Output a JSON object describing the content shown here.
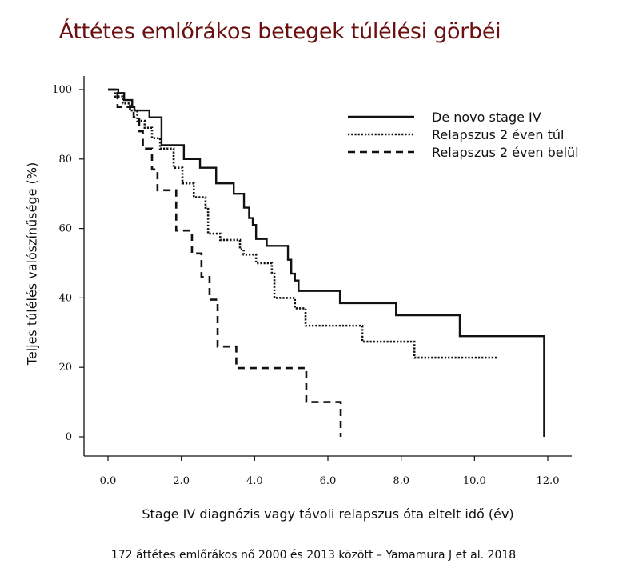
{
  "chart_data": {
    "type": "line",
    "title": "Áttétes emlőrákos betegek túlélési görbéi",
    "xlabel": "Stage IV diagnózis vagy távoli relapszus óta eltelt idő (év)",
    "ylabel": "Teljes túlélés valószínűsége (%)",
    "caption": "172 áttétes emlőrákos nő 2000 és 2013 között – Yamamura J et al. 2018",
    "xlim": [
      0,
      12
    ],
    "ylim": [
      0,
      100
    ],
    "xticks": [
      "0.0",
      "2.0",
      "4.0",
      "6.0",
      "8.0",
      "10.0",
      "12.0"
    ],
    "xtick_values": [
      0,
      2,
      4,
      6,
      8,
      10,
      12
    ],
    "yticks": [
      "0",
      "20",
      "40",
      "60",
      "80",
      "100"
    ],
    "ytick_values": [
      0,
      20,
      40,
      60,
      80,
      100
    ],
    "grid": false,
    "legend_position": "top-right",
    "step": true,
    "series": [
      {
        "name": "De novo stage IV",
        "style": "solid",
        "x": [
          0,
          0.28,
          0.44,
          0.66,
          0.72,
          1.13,
          1.46,
          2.07,
          2.51,
          2.95,
          3.43,
          3.71,
          3.85,
          3.95,
          4.04,
          4.33,
          4.91,
          5.0,
          5.1,
          5.2,
          6.33,
          7.86,
          9.6,
          11.9,
          11.9
        ],
        "y": [
          100,
          99,
          97,
          95,
          94,
          92,
          84,
          80,
          77.5,
          73,
          70,
          66,
          63,
          61,
          57,
          55,
          51,
          47,
          45,
          42,
          38.5,
          35,
          29,
          29,
          0
        ]
      },
      {
        "name": "Relapszus 2 éven túl",
        "style": "dotted",
        "x": [
          0,
          0.2,
          0.4,
          0.6,
          0.8,
          1.0,
          1.2,
          1.42,
          1.79,
          2.03,
          2.34,
          2.66,
          2.73,
          3.06,
          3.6,
          3.7,
          4.04,
          4.47,
          4.54,
          5.1,
          5.39,
          6.94,
          8.36,
          10.65
        ],
        "y": [
          100,
          98,
          96,
          94,
          91,
          89,
          86,
          83,
          77.5,
          73,
          69,
          66,
          58.5,
          56.7,
          54,
          52.5,
          50,
          47,
          40,
          37,
          32,
          27.4,
          22.8,
          22.8
        ]
      },
      {
        "name": "Relapszus 2 éven belül",
        "style": "dashed",
        "x": [
          0,
          0.26,
          0.7,
          0.85,
          0.95,
          1.2,
          1.35,
          1.86,
          2.29,
          2.55,
          2.77,
          2.99,
          3.5,
          5.41,
          6.35,
          6.35
        ],
        "y": [
          100,
          95,
          92,
          88,
          83,
          77,
          71,
          59.4,
          52.8,
          46,
          39.5,
          26,
          19.8,
          10,
          10,
          0
        ]
      }
    ]
  }
}
